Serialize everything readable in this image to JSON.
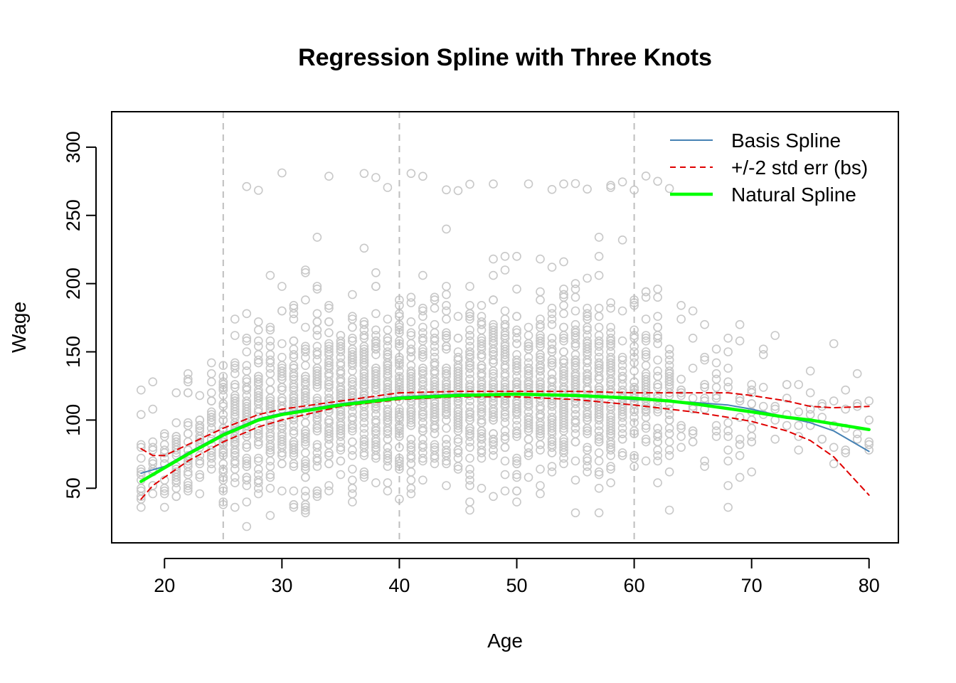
{
  "chart_data": {
    "type": "scatter",
    "title": "Regression Spline with Three Knots",
    "xlabel": "Age",
    "ylabel": "Wage",
    "xlim": [
      15.5,
      82.5
    ],
    "ylim": [
      10,
      326
    ],
    "x_ticks": [
      20,
      30,
      40,
      50,
      60,
      70,
      80
    ],
    "y_ticks": [
      50,
      100,
      150,
      200,
      250,
      300
    ],
    "knots": [
      25,
      40,
      60
    ],
    "grid": false,
    "legend_position": "top-right",
    "colors": {
      "points": "#c8c8c8",
      "knot_lines": "#bebebe",
      "basis_spline": "#4682b4",
      "std_err": "#e00000",
      "natural_spline": "#00ff00"
    },
    "series": [
      {
        "name": "Basis Spline",
        "style": "solid-thin",
        "x": [
          18,
          20,
          22,
          25,
          28,
          30,
          35,
          40,
          45,
          50,
          55,
          60,
          63,
          65,
          68,
          70,
          73,
          75,
          77,
          80
        ],
        "y": [
          61,
          66,
          76,
          90,
          101,
          105,
          112,
          117,
          119,
          119,
          118,
          115,
          114,
          113,
          111,
          108,
          102,
          98,
          92,
          77
        ]
      },
      {
        "name": "+/-2 std err (bs)",
        "style": "dashed",
        "x": [
          18,
          19,
          20,
          22,
          25,
          28,
          30,
          35,
          40,
          45,
          50,
          55,
          60,
          63,
          65,
          68,
          70,
          73,
          75,
          77,
          80
        ],
        "y": [
          79,
          74,
          74,
          82,
          94,
          104,
          108,
          114,
          120,
          121,
          121,
          121,
          120,
          120,
          120,
          120,
          118,
          114,
          110,
          109,
          110
        ]
      },
      {
        "name": "",
        "style": "dashed",
        "x": [
          18,
          19,
          20,
          22,
          25,
          28,
          30,
          35,
          40,
          45,
          50,
          55,
          60,
          63,
          65,
          68,
          70,
          73,
          75,
          77,
          80
        ],
        "y": [
          42,
          52,
          58,
          70,
          84,
          95,
          100,
          110,
          115,
          117,
          117,
          115,
          111,
          108,
          106,
          102,
          99,
          92,
          85,
          73,
          45
        ]
      },
      {
        "name": "Natural Spline",
        "style": "solid-thick",
        "x": [
          18,
          20,
          22,
          25,
          28,
          30,
          35,
          40,
          45,
          50,
          55,
          60,
          63,
          65,
          70,
          73,
          75,
          80
        ],
        "y": [
          55,
          65,
          75,
          89,
          100,
          104,
          111,
          116,
          118,
          119,
          118,
          116,
          114,
          112,
          106,
          102,
          100,
          93
        ]
      }
    ]
  }
}
